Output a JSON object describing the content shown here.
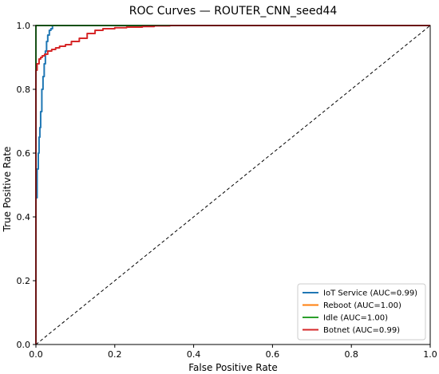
{
  "chart_data": {
    "type": "line",
    "title": "ROC Curves — ROUTER_CNN_seed44",
    "xlabel": "False Positive Rate",
    "ylabel": "True Positive Rate",
    "xlim": [
      0,
      1
    ],
    "ylim": [
      0,
      1
    ],
    "x_ticks": [
      "0.0",
      "0.2",
      "0.4",
      "0.6",
      "0.8",
      "1.0"
    ],
    "y_ticks": [
      "0.0",
      "0.2",
      "0.4",
      "0.6",
      "0.8",
      "1.0"
    ],
    "grid": false,
    "legend_position": "lower-right",
    "diagonal_reference": {
      "x": [
        0,
        1
      ],
      "y": [
        0,
        1
      ],
      "style": "dashed",
      "color": "#000000"
    },
    "series": [
      {
        "name": "IoT Service (AUC=0.99)",
        "color": "#1f77b4",
        "x": [
          0,
          0,
          0.003,
          0.003,
          0.006,
          0.006,
          0.008,
          0.008,
          0.01,
          0.01,
          0.012,
          0.012,
          0.015,
          0.015,
          0.018,
          0.018,
          0.021,
          0.021,
          0.024,
          0.024,
          0.027,
          0.027,
          0.03,
          0.03,
          0.034,
          0.034,
          0.038,
          0.038,
          0.042,
          0.042,
          0.045,
          1.0
        ],
        "y": [
          0,
          0.46,
          0.46,
          0.55,
          0.55,
          0.6,
          0.6,
          0.65,
          0.65,
          0.68,
          0.68,
          0.73,
          0.73,
          0.8,
          0.8,
          0.84,
          0.84,
          0.88,
          0.88,
          0.92,
          0.92,
          0.95,
          0.95,
          0.97,
          0.97,
          0.985,
          0.985,
          0.99,
          0.99,
          1.0,
          1.0,
          1.0
        ]
      },
      {
        "name": "Reboot (AUC=1.00)",
        "color": "#ff7f0e",
        "x": [
          0,
          0,
          1.0
        ],
        "y": [
          0,
          1.0,
          1.0
        ]
      },
      {
        "name": "Idle (AUC=1.00)",
        "color": "#2ca02c",
        "x": [
          0,
          0,
          1.0
        ],
        "y": [
          0,
          1.0,
          1.0
        ]
      },
      {
        "name": "Botnet (AUC=0.99)",
        "color": "#d62728",
        "x": [
          0,
          0,
          0.003,
          0.003,
          0.008,
          0.008,
          0.012,
          0.012,
          0.016,
          0.016,
          0.022,
          0.022,
          0.03,
          0.03,
          0.04,
          0.04,
          0.05,
          0.05,
          0.06,
          0.06,
          0.075,
          0.075,
          0.09,
          0.09,
          0.11,
          0.11,
          0.13,
          0.13,
          0.15,
          0.15,
          0.17,
          0.17,
          0.2,
          0.2,
          0.23,
          0.23,
          0.27,
          0.27,
          0.3,
          0.3,
          0.34,
          0.34,
          1.0
        ],
        "y": [
          0,
          0.86,
          0.86,
          0.88,
          0.88,
          0.895,
          0.895,
          0.9,
          0.9,
          0.905,
          0.905,
          0.91,
          0.91,
          0.92,
          0.92,
          0.925,
          0.925,
          0.93,
          0.93,
          0.935,
          0.935,
          0.94,
          0.94,
          0.95,
          0.95,
          0.96,
          0.96,
          0.975,
          0.975,
          0.985,
          0.985,
          0.99,
          0.99,
          0.993,
          0.993,
          0.995,
          0.995,
          0.997,
          0.997,
          0.999,
          0.999,
          1.0,
          1.0
        ]
      }
    ]
  }
}
